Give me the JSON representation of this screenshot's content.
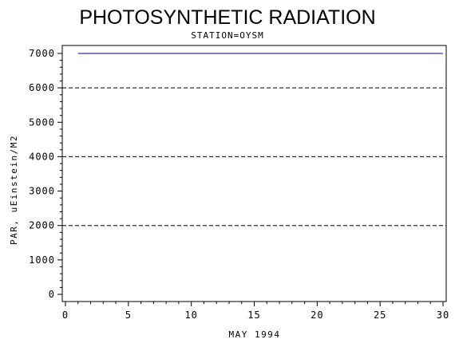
{
  "chart_data": {
    "type": "line",
    "title": "PHOTOSYNTHETIC RADIATION",
    "subtitle": "STATION=OYSM",
    "xlabel": "MAY 1994",
    "ylabel": "PAR, uEinstein/M2",
    "xlim": [
      0,
      30
    ],
    "ylim": [
      0,
      7000
    ],
    "x_ticks": [
      "0",
      "5",
      "10",
      "15",
      "20",
      "25",
      "30"
    ],
    "y_ticks": [
      "0",
      "1000",
      "2000",
      "3000",
      "4000",
      "5000",
      "6000",
      "7000"
    ],
    "reference_lines": [
      2000,
      4000,
      6000
    ],
    "grid": "dashed horizontal reference lines",
    "series": [
      {
        "color": "#000080",
        "x": [
          1,
          30
        ],
        "y": [
          7000,
          7000
        ]
      }
    ]
  }
}
